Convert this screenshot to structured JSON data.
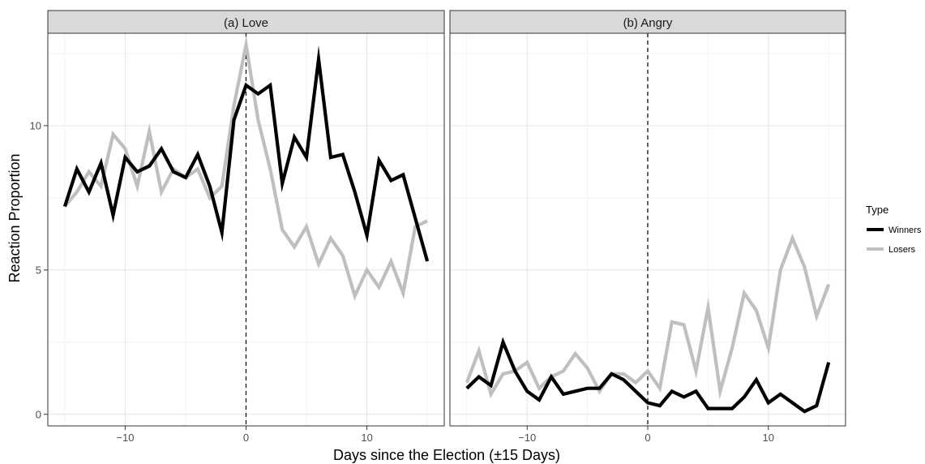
{
  "chart_data": {
    "type": "line",
    "xlabel": "Days since the Election (±15 Days)",
    "ylabel": "Reaction Proportion",
    "xlim": [
      -16.4,
      16.4
    ],
    "ylim": [
      -0.4,
      13.2
    ],
    "x_ticks": [
      -10,
      0,
      10
    ],
    "y_ticks": [
      0,
      5,
      10
    ],
    "grid": true,
    "reference_line_x": 0,
    "legend": {
      "title": "Type",
      "placement": "right",
      "entries": [
        {
          "name": "Winners",
          "color": "#000000"
        },
        {
          "name": "Losers",
          "color": "#bfbfbf"
        }
      ]
    },
    "x": [
      -15,
      -14,
      -13,
      -12,
      -11,
      -10,
      -9,
      -8,
      -7,
      -6,
      -5,
      -4,
      -3,
      -2,
      -1,
      0,
      1,
      2,
      3,
      4,
      5,
      6,
      7,
      8,
      9,
      10,
      11,
      12,
      13,
      14,
      15
    ],
    "panels": [
      {
        "title": "(a) Love",
        "series": [
          {
            "name": "Winners",
            "values": [
              7.2,
              8.5,
              7.7,
              8.7,
              6.9,
              8.9,
              8.4,
              8.6,
              9.2,
              8.4,
              8.2,
              9.0,
              7.9,
              6.3,
              10.2,
              11.4,
              11.1,
              11.4,
              8.0,
              9.6,
              8.9,
              12.3,
              8.9,
              9.0,
              7.7,
              6.2,
              8.8,
              8.1,
              8.3,
              6.8,
              5.3
            ]
          },
          {
            "name": "Losers",
            "values": [
              7.2,
              7.7,
              8.4,
              7.9,
              9.7,
              9.2,
              7.9,
              9.8,
              7.7,
              8.5,
              8.2,
              8.5,
              7.5,
              7.9,
              10.7,
              12.8,
              10.2,
              8.5,
              6.4,
              5.8,
              6.5,
              5.2,
              6.1,
              5.5,
              4.1,
              5.0,
              4.4,
              5.3,
              4.2,
              6.5,
              6.7
            ]
          }
        ]
      },
      {
        "title": "(b) Angry",
        "series": [
          {
            "name": "Winners",
            "values": [
              0.9,
              1.3,
              1.0,
              2.5,
              1.5,
              0.8,
              0.5,
              1.3,
              0.7,
              0.8,
              0.9,
              0.9,
              1.4,
              1.2,
              0.8,
              0.4,
              0.3,
              0.8,
              0.6,
              0.8,
              0.2,
              0.2,
              0.2,
              0.6,
              1.2,
              0.4,
              0.7,
              0.4,
              0.1,
              0.3,
              1.8
            ]
          },
          {
            "name": "Losers",
            "values": [
              1.1,
              2.2,
              0.7,
              1.4,
              1.5,
              1.8,
              0.9,
              1.3,
              1.5,
              2.1,
              1.6,
              0.8,
              1.4,
              1.4,
              1.1,
              1.5,
              0.9,
              3.2,
              3.1,
              1.5,
              3.7,
              0.8,
              2.3,
              4.2,
              3.6,
              2.3,
              5.0,
              6.1,
              5.1,
              3.4,
              4.5
            ]
          }
        ]
      }
    ]
  }
}
